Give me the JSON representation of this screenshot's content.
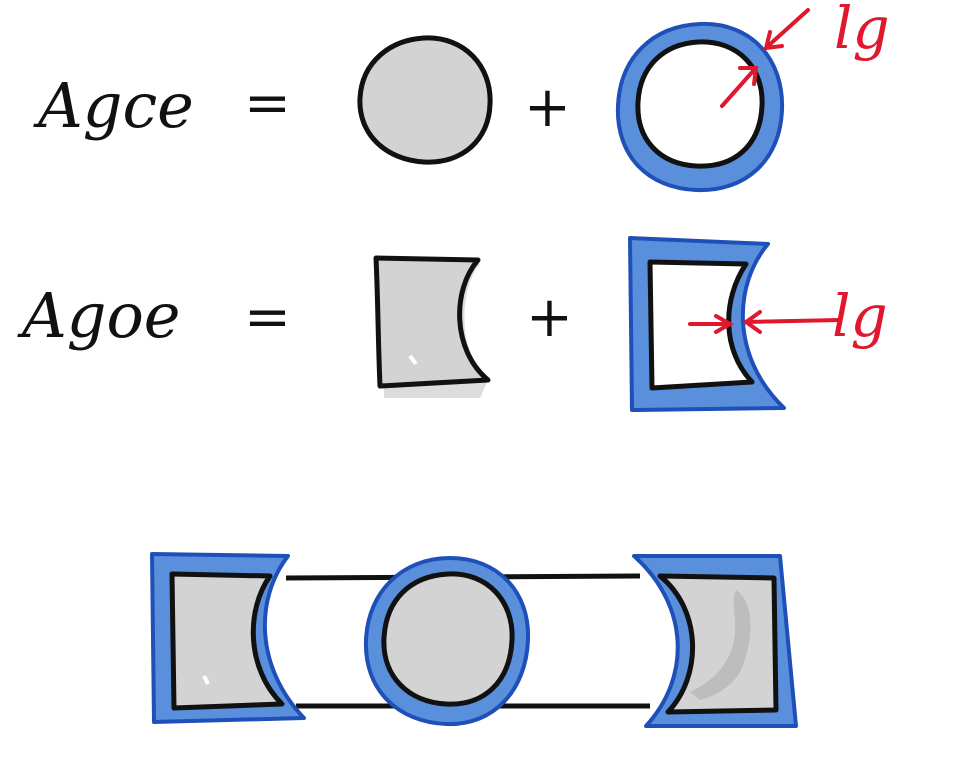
{
  "equations": [
    {
      "lhs": "Agce",
      "equals": "=",
      "plus": "+",
      "annotation": "lg"
    },
    {
      "lhs": "Agoe",
      "equals": "=",
      "plus": "+",
      "annotation": "lg"
    }
  ],
  "colors": {
    "ink": "#111111",
    "fill_gray": "#d3d3d3",
    "fill_blue": "#5a8fdc",
    "edge_blue": "#1f4fb8",
    "arrow_red": "#e0182d"
  }
}
